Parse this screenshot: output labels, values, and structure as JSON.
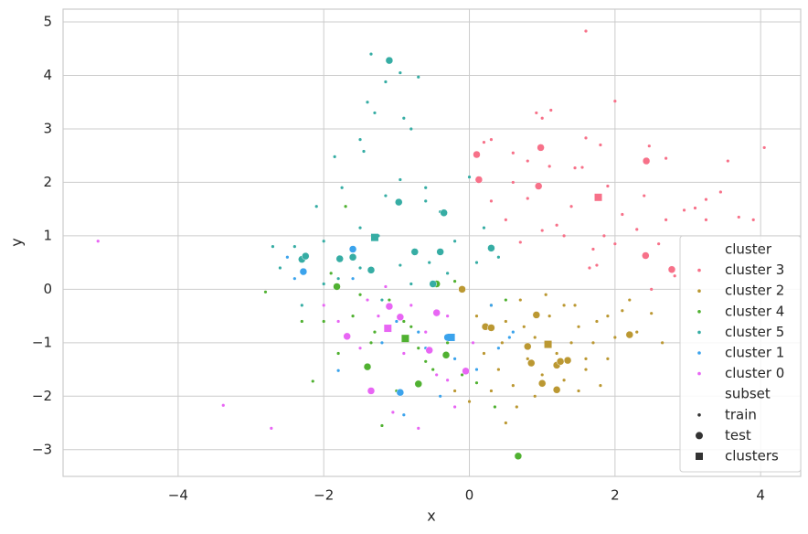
{
  "chart_data": {
    "type": "scatter",
    "x_label": "x",
    "y_label": "y",
    "xlim": [
      -5.58,
      4.55
    ],
    "ylim": [
      -3.5,
      5.24
    ],
    "xticks": [
      {
        "value": -4,
        "label": "−4"
      },
      {
        "value": -2,
        "label": "−2"
      },
      0,
      2,
      4
    ],
    "yticks": [
      {
        "value": -3,
        "label": "−3"
      },
      {
        "value": -2,
        "label": "−2"
      },
      {
        "value": -1,
        "label": "−1"
      },
      0,
      1,
      2,
      3,
      4,
      5
    ],
    "grid": true,
    "legend_loc": "lower right",
    "legend_titles": {
      "hue": "cluster",
      "style": "subset"
    },
    "subsets": [
      {
        "name": "train",
        "marker": "point"
      },
      {
        "name": "test",
        "marker": "circle"
      },
      {
        "name": "clusters",
        "marker": "square"
      }
    ],
    "series": [
      {
        "name": "cluster 3",
        "color": "#f77189",
        "train": {
          "x": [
            1.6,
            2.0,
            0.92,
            1.0,
            1.12,
            1.6,
            1.8,
            0.3,
            0.2,
            4.05,
            3.55,
            2.47,
            2.7,
            1.45,
            1.55,
            0.6,
            0.8,
            1.1,
            1.9,
            2.4,
            3.45,
            3.25,
            3.1,
            2.95,
            2.3,
            2.0,
            0.7,
            1.7,
            2.6,
            3.7,
            3.25,
            1.75,
            1.65,
            0.3,
            0.5,
            1.2,
            1.4,
            2.1,
            2.7,
            2.82,
            1.0,
            3.9,
            2.5,
            0.8,
            0.6,
            1.3,
            1.85
          ],
          "y": [
            4.83,
            3.52,
            3.3,
            3.2,
            3.35,
            2.83,
            2.7,
            2.8,
            2.75,
            2.65,
            2.4,
            2.68,
            2.45,
            2.27,
            2.28,
            2.55,
            2.4,
            2.3,
            1.93,
            1.75,
            1.82,
            1.68,
            1.52,
            1.48,
            1.12,
            0.85,
            0.88,
            0.75,
            0.85,
            1.35,
            1.3,
            0.45,
            0.4,
            1.65,
            1.3,
            1.2,
            1.55,
            1.4,
            1.3,
            0.25,
            1.1,
            1.3,
            0.0,
            1.7,
            2.0,
            1.0,
            1.0
          ]
        },
        "test": {
          "x": [
            0.1,
            0.13,
            0.98,
            0.95,
            2.43,
            2.42,
            2.78
          ],
          "y": [
            2.52,
            2.05,
            2.65,
            1.93,
            2.4,
            0.63,
            0.37
          ]
        },
        "clusters": {
          "x": [
            1.77
          ],
          "y": [
            1.72
          ]
        }
      },
      {
        "name": "cluster 2",
        "color": "#bb9832",
        "train": {
          "x": [
            0.1,
            0.3,
            0.5,
            0.7,
            0.9,
            1.1,
            1.3,
            1.5,
            1.7,
            1.9,
            2.1,
            2.3,
            2.5,
            2.65,
            2.2,
            0.2,
            0.4,
            0.6,
            0.8,
            1.0,
            1.2,
            1.4,
            1.6,
            1.8,
            1.9,
            1.75,
            0.5,
            0.65,
            0.9,
            1.5,
            0.0,
            -0.2,
            0.3,
            0.45,
            1.05,
            1.3,
            1.6,
            2.0,
            0.75,
            1.45
          ],
          "y": [
            -0.5,
            -0.3,
            -0.6,
            -0.2,
            -0.9,
            -0.5,
            -0.3,
            -0.7,
            -1.0,
            -0.5,
            -0.4,
            -0.8,
            -0.45,
            -1.0,
            -0.2,
            -1.2,
            -1.5,
            -1.8,
            -1.3,
            -1.6,
            -1.2,
            -1.0,
            -1.5,
            -1.8,
            -1.3,
            -0.6,
            -2.5,
            -2.2,
            -2.0,
            -1.9,
            -2.1,
            -1.9,
            -1.9,
            -1.0,
            -0.1,
            -1.7,
            -1.3,
            -0.9,
            -0.7,
            -0.3
          ]
        },
        "test": {
          "x": [
            -0.1,
            0.22,
            0.92,
            0.8,
            0.85,
            1.0,
            1.2,
            1.2,
            1.25,
            1.35,
            2.2,
            0.3
          ],
          "y": [
            0.0,
            -0.7,
            -0.48,
            -1.07,
            -1.38,
            -1.76,
            -1.88,
            -1.42,
            -1.35,
            -1.33,
            -0.85,
            -0.72
          ]
        },
        "clusters": {
          "x": [
            1.08
          ],
          "y": [
            -1.03
          ]
        }
      },
      {
        "name": "cluster 4",
        "color": "#50b131",
        "train": {
          "x": [
            -2.8,
            -2.15,
            -2.3,
            -1.8,
            -1.6,
            -1.3,
            -1.1,
            -0.9,
            -0.7,
            -0.5,
            -0.3,
            -0.1,
            0.35,
            -1.2,
            0.5,
            -1.7,
            -1.9,
            -1.5,
            -1.0,
            -0.6,
            -2.0,
            -1.35,
            -0.8,
            0.1,
            -0.2
          ],
          "y": [
            -0.05,
            -1.72,
            -0.6,
            -1.2,
            -0.5,
            -0.8,
            -0.2,
            -0.6,
            -1.1,
            -1.5,
            -1.0,
            -1.6,
            -2.2,
            -2.55,
            -0.2,
            1.55,
            0.3,
            -0.1,
            -1.9,
            -1.35,
            -0.6,
            -1.0,
            -0.7,
            -1.75,
            0.15
          ]
        },
        "test": {
          "x": [
            -1.82,
            -0.45,
            -0.32,
            -1.4,
            -0.7,
            0.67
          ],
          "y": [
            0.05,
            0.1,
            -1.23,
            -1.45,
            -1.77,
            -3.12
          ]
        },
        "clusters": {
          "x": [
            -0.88
          ],
          "y": [
            -0.92
          ]
        }
      },
      {
        "name": "cluster 5",
        "color": "#36ada4",
        "train": {
          "x": [
            -1.35,
            -0.95,
            -0.7,
            -1.15,
            -1.4,
            -1.3,
            -0.9,
            -0.8,
            -1.5,
            -1.45,
            -1.85,
            -0.95,
            -1.15,
            -0.6,
            -0.4,
            -1.75,
            -2.1,
            -1.5,
            -1.25,
            -2.0,
            -2.4,
            -2.7,
            -2.6,
            -2.0,
            -1.5,
            -0.95,
            -0.55,
            -0.2,
            0.1,
            -0.3,
            -0.8,
            -1.2,
            0.0,
            0.2,
            0.4,
            -2.3,
            -1.8,
            -0.6
          ],
          "y": [
            4.4,
            4.05,
            3.97,
            3.88,
            3.5,
            3.3,
            3.2,
            3.0,
            2.8,
            2.58,
            2.48,
            2.05,
            1.75,
            1.65,
            1.45,
            1.9,
            1.55,
            1.15,
            1.0,
            0.9,
            0.8,
            0.8,
            0.4,
            0.1,
            0.4,
            0.45,
            0.5,
            0.9,
            0.5,
            0.3,
            0.1,
            -0.2,
            2.1,
            1.15,
            0.6,
            -0.3,
            0.2,
            1.9
          ]
        },
        "test": {
          "x": [
            -1.1,
            -2.3,
            -2.25,
            -1.78,
            -1.6,
            -1.35,
            -0.97,
            -0.75,
            -0.4,
            -0.35,
            0.3,
            -0.5
          ],
          "y": [
            4.28,
            0.56,
            0.62,
            0.57,
            0.6,
            0.36,
            1.63,
            0.7,
            0.7,
            1.43,
            0.77,
            0.1
          ]
        },
        "clusters": {
          "x": [
            -1.3
          ],
          "y": [
            0.97
          ]
        }
      },
      {
        "name": "cluster 1",
        "color": "#3ba3ec",
        "train": {
          "x": [
            -1.8,
            -0.9,
            -0.4,
            0.1,
            0.4,
            0.55,
            -0.6,
            -1.0,
            -1.6,
            -2.4,
            -2.5,
            -0.7,
            0.3,
            -0.2,
            -1.2,
            0.6
          ],
          "y": [
            -1.52,
            -2.35,
            -2.0,
            -1.5,
            -1.1,
            -0.9,
            -1.1,
            -0.6,
            0.2,
            0.2,
            0.6,
            -0.8,
            -0.3,
            -1.3,
            -1.0,
            -0.8
          ]
        },
        "test": {
          "x": [
            -2.28,
            -1.6,
            -0.3,
            -0.95
          ],
          "y": [
            0.33,
            0.75,
            -0.9,
            -1.93
          ]
        },
        "clusters": {
          "x": [
            -0.25
          ],
          "y": [
            -0.9
          ]
        }
      },
      {
        "name": "cluster 0",
        "color": "#e866f4",
        "train": {
          "x": [
            -5.1,
            -3.38,
            -2.72,
            -1.8,
            -1.5,
            -1.25,
            -0.8,
            -0.6,
            -0.3,
            -0.2,
            -0.7,
            -1.05,
            -0.45,
            -1.4,
            -2.0,
            -0.9,
            0.05,
            -1.15,
            -0.3
          ],
          "y": [
            0.9,
            -2.17,
            -2.6,
            -0.6,
            -1.1,
            -0.5,
            -0.3,
            -0.8,
            -0.5,
            -2.2,
            -2.6,
            -2.3,
            -1.6,
            -0.2,
            -0.3,
            -1.2,
            -1.0,
            0.05,
            -1.7
          ]
        },
        "test": {
          "x": [
            -1.1,
            -1.68,
            -0.95,
            -0.55,
            -0.45,
            -0.05,
            -1.35
          ],
          "y": [
            -0.32,
            -0.88,
            -0.52,
            -1.14,
            -0.44,
            -1.53,
            -1.9
          ]
        },
        "clusters": {
          "x": [
            -1.12
          ],
          "y": [
            -0.73
          ]
        }
      }
    ]
  }
}
